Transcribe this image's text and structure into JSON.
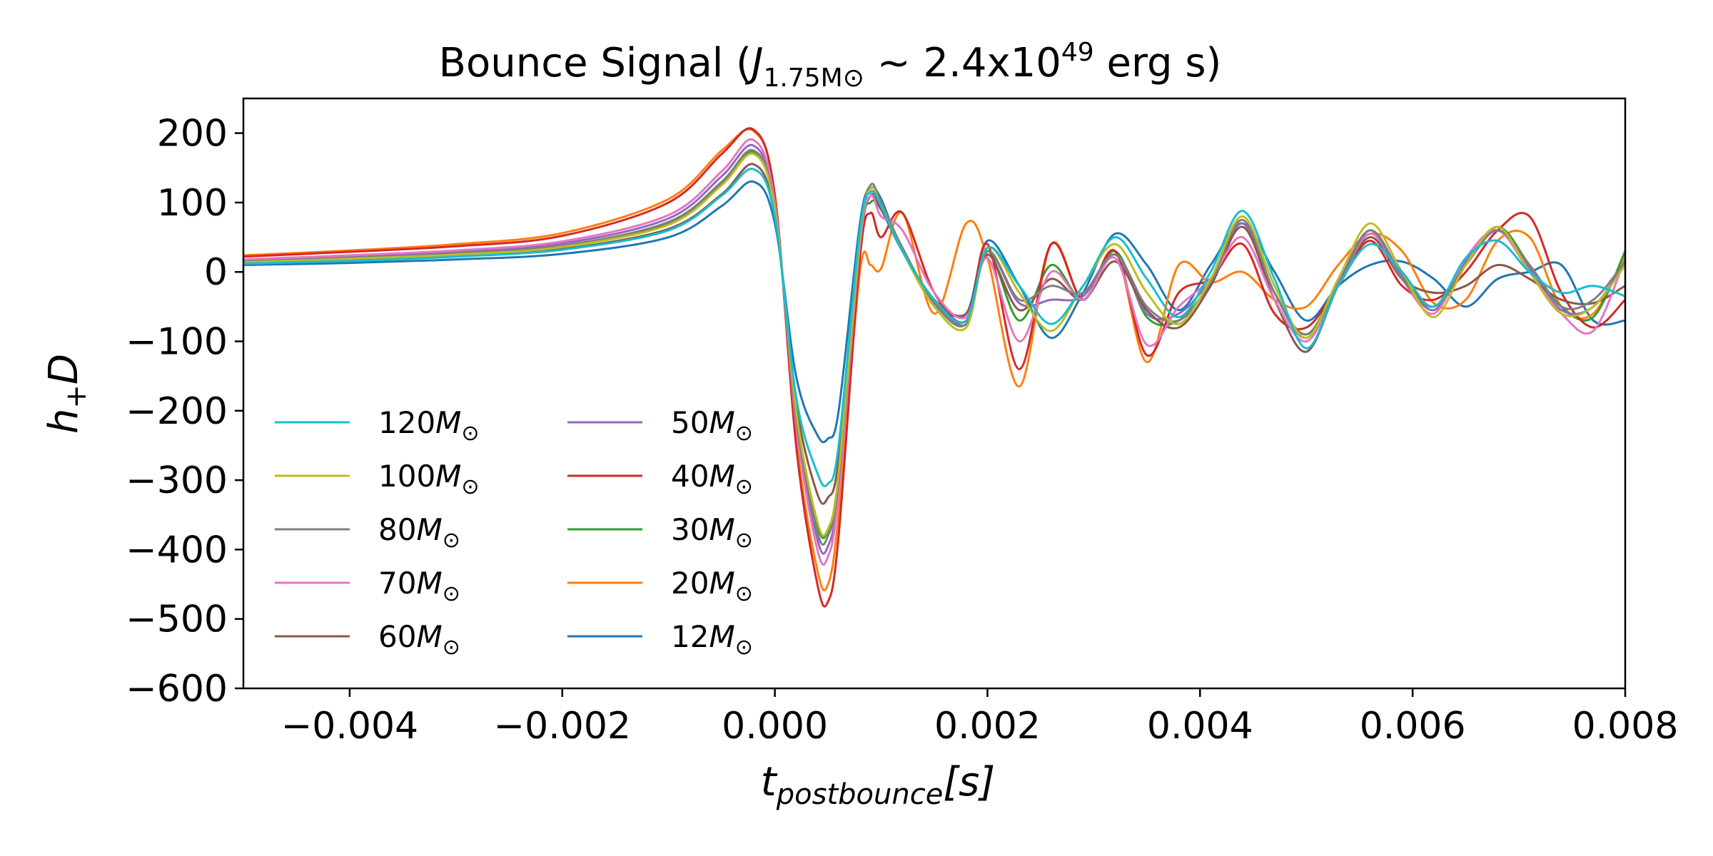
{
  "chart_data": {
    "type": "line",
    "title_parts": {
      "prefix": "Bounce Signal (",
      "j": "J",
      "j_sub": "1.75M",
      "j_sub_sym": "⊙",
      "mid": " ~ 2.4x10",
      "exp": "49",
      "suffix": " erg s)"
    },
    "xlabel_parts": {
      "main": "t",
      "sub": "postbounce",
      "tail": "[s]"
    },
    "ylabel_parts": {
      "main": "h",
      "sub": "+",
      "tail": "D"
    },
    "xlim": [
      -0.005,
      0.008
    ],
    "ylim": [
      -600,
      250
    ],
    "xticks": [
      -0.004,
      -0.002,
      0.0,
      0.002,
      0.004,
      0.006,
      0.008
    ],
    "xtick_labels": [
      "−0.004",
      "−0.002",
      "0.000",
      "0.002",
      "0.004",
      "0.006",
      "0.008"
    ],
    "yticks": [
      200,
      100,
      0,
      -100,
      -200,
      -300,
      -400,
      -500,
      -600
    ],
    "ytick_labels": [
      "200",
      "100",
      "0",
      "−100",
      "−200",
      "−300",
      "−400",
      "−500",
      "−600"
    ],
    "grid": false,
    "legend_position": "lower-left",
    "series": [
      {
        "name": "120M",
        "color": "#17becf",
        "x": [
          -0.005,
          -0.004,
          -0.003,
          -0.002,
          -0.001,
          -0.0005,
          -0.0002,
          0,
          0.0002,
          0.0004,
          0.0005,
          0.0006,
          0.0008,
          0.0009,
          0.001,
          0.0012,
          0.0015,
          0.0018,
          0.002,
          0.0023,
          0.0026,
          0.0029,
          0.0032,
          0.0035,
          0.0038,
          0.0041,
          0.0044,
          0.0047,
          0.005,
          0.0053,
          0.0056,
          0.0059,
          0.0062,
          0.0065,
          0.0068,
          0.0071,
          0.0074,
          0.0077,
          0.008
        ],
        "y": [
          12,
          16,
          22,
          32,
          60,
          110,
          148,
          80,
          -180,
          -290,
          -305,
          -250,
          60,
          115,
          95,
          30,
          -40,
          -70,
          35,
          -20,
          -75,
          -20,
          50,
          -10,
          -65,
          0,
          88,
          -10,
          -110,
          -20,
          40,
          0,
          -50,
          20,
          45,
          0,
          -30,
          -20,
          -35
        ]
      },
      {
        "name": "100M",
        "color": "#bcbd22",
        "x": [
          -0.005,
          -0.004,
          -0.003,
          -0.002,
          -0.001,
          -0.0005,
          -0.0002,
          0,
          0.0002,
          0.0004,
          0.0005,
          0.0006,
          0.0008,
          0.0009,
          0.001,
          0.0012,
          0.0015,
          0.0018,
          0.002,
          0.0023,
          0.0026,
          0.0029,
          0.0032,
          0.0035,
          0.0038,
          0.0041,
          0.0044,
          0.0047,
          0.005,
          0.0053,
          0.0056,
          0.0059,
          0.0062,
          0.0065,
          0.0068,
          0.0071,
          0.0074,
          0.0077,
          0.008
        ],
        "y": [
          14,
          19,
          25,
          36,
          68,
          125,
          170,
          90,
          -200,
          -360,
          -370,
          -290,
          50,
          120,
          95,
          30,
          -50,
          -80,
          35,
          -30,
          -85,
          -20,
          40,
          -30,
          -75,
          -10,
          80,
          -20,
          -95,
          -10,
          70,
          0,
          -65,
          10,
          65,
          0,
          -60,
          -50,
          10
        ]
      },
      {
        "name": "80M",
        "color": "#7f7f7f",
        "x": [
          -0.005,
          -0.004,
          -0.003,
          -0.002,
          -0.001,
          -0.0005,
          -0.0002,
          0,
          0.0002,
          0.0004,
          0.0005,
          0.0006,
          0.0008,
          0.0009,
          0.001,
          0.0012,
          0.0015,
          0.0018,
          0.002,
          0.0023,
          0.0026,
          0.0029,
          0.0032,
          0.0035,
          0.0038,
          0.0041,
          0.0044,
          0.0047,
          0.005,
          0.0053,
          0.0056,
          0.0059,
          0.0062,
          0.0065,
          0.0068,
          0.0071,
          0.0074,
          0.0077,
          0.008
        ],
        "y": [
          15,
          20,
          27,
          38,
          72,
          130,
          175,
          92,
          -210,
          -375,
          -380,
          -300,
          50,
          125,
          100,
          35,
          -45,
          -75,
          30,
          -40,
          -20,
          -30,
          25,
          -50,
          -70,
          -15,
          75,
          -30,
          -90,
          -20,
          60,
          -10,
          -50,
          10,
          60,
          10,
          -50,
          -40,
          15
        ]
      },
      {
        "name": "70M",
        "color": "#e377c2",
        "x": [
          -0.005,
          -0.004,
          -0.003,
          -0.002,
          -0.001,
          -0.0005,
          -0.0002,
          0,
          0.0002,
          0.0004,
          0.0005,
          0.0006,
          0.0008,
          0.0009,
          0.001,
          0.0012,
          0.0015,
          0.0018,
          0.002,
          0.0023,
          0.0026,
          0.0029,
          0.0032,
          0.0035,
          0.0038,
          0.0041,
          0.0044,
          0.0047,
          0.005,
          0.0053,
          0.0056,
          0.0059,
          0.0062,
          0.0065,
          0.0068,
          0.0071,
          0.0074,
          0.0077,
          0.008
        ],
        "y": [
          18,
          24,
          31,
          44,
          82,
          145,
          190,
          100,
          -220,
          -400,
          -410,
          -320,
          40,
          110,
          80,
          60,
          -30,
          -65,
          20,
          -100,
          0,
          -40,
          20,
          -105,
          -50,
          -10,
          50,
          -40,
          -100,
          -20,
          55,
          -10,
          -60,
          20,
          60,
          0,
          -60,
          -85,
          20
        ]
      },
      {
        "name": "60M",
        "color": "#8c564b",
        "x": [
          -0.005,
          -0.004,
          -0.003,
          -0.002,
          -0.001,
          -0.0005,
          -0.0002,
          0,
          0.0002,
          0.0004,
          0.0005,
          0.0006,
          0.0008,
          0.0009,
          0.001,
          0.0012,
          0.0015,
          0.0018,
          0.002,
          0.0023,
          0.0026,
          0.0029,
          0.0032,
          0.0035,
          0.0038,
          0.0041,
          0.0044,
          0.0047,
          0.005,
          0.0053,
          0.0056,
          0.0059,
          0.0062,
          0.0065,
          0.0068,
          0.0071,
          0.0074,
          0.0077,
          0.008
        ],
        "y": [
          13,
          17,
          23,
          33,
          62,
          112,
          155,
          82,
          -190,
          -320,
          -325,
          -270,
          40,
          110,
          90,
          30,
          -40,
          -60,
          25,
          -55,
          -10,
          -40,
          15,
          -55,
          -80,
          -20,
          65,
          -40,
          -115,
          -20,
          50,
          -10,
          -30,
          -20,
          10,
          -10,
          -40,
          -45,
          -20
        ]
      },
      {
        "name": "50M",
        "color": "#9467bd",
        "x": [
          -0.005,
          -0.004,
          -0.003,
          -0.002,
          -0.001,
          -0.0005,
          -0.0002,
          0,
          0.0002,
          0.0004,
          0.0005,
          0.0006,
          0.0008,
          0.0009,
          0.001,
          0.0012,
          0.0015,
          0.0018,
          0.002,
          0.0023,
          0.0026,
          0.0029,
          0.0032,
          0.0035,
          0.0038,
          0.0041,
          0.0044,
          0.0047,
          0.005,
          0.0053,
          0.0056,
          0.0059,
          0.0062,
          0.0065,
          0.0068,
          0.0071,
          0.0074,
          0.0077,
          0.008
        ],
        "y": [
          16,
          22,
          29,
          41,
          77,
          138,
          182,
          96,
          -215,
          -385,
          -395,
          -310,
          45,
          120,
          95,
          35,
          -45,
          -70,
          30,
          -45,
          -40,
          -35,
          25,
          -60,
          -60,
          -10,
          70,
          -30,
          -95,
          -15,
          60,
          -5,
          -55,
          15,
          60,
          5,
          -55,
          -50,
          15
        ]
      },
      {
        "name": "40M",
        "color": "#d62728",
        "x": [
          -0.005,
          -0.004,
          -0.003,
          -0.002,
          -0.001,
          -0.0005,
          -0.0002,
          0,
          0.0002,
          0.0004,
          0.0005,
          0.0006,
          0.0008,
          0.0009,
          0.001,
          0.0012,
          0.0015,
          0.0018,
          0.002,
          0.0023,
          0.0026,
          0.0029,
          0.0032,
          0.0035,
          0.0038,
          0.0041,
          0.0044,
          0.0047,
          0.005,
          0.0053,
          0.0056,
          0.0059,
          0.0062,
          0.0065,
          0.0068,
          0.0071,
          0.0074,
          0.0077,
          0.008
        ],
        "y": [
          22,
          29,
          37,
          52,
          100,
          170,
          205,
          110,
          -250,
          -450,
          -475,
          -380,
          20,
          85,
          50,
          85,
          -30,
          -70,
          40,
          -140,
          40,
          -40,
          30,
          -120,
          -30,
          -10,
          40,
          -60,
          -80,
          -20,
          45,
          -20,
          -40,
          0,
          60,
          80,
          -30,
          -80,
          -40
        ]
      },
      {
        "name": "30M",
        "color": "#2ca02c",
        "x": [
          -0.005,
          -0.004,
          -0.003,
          -0.002,
          -0.001,
          -0.0005,
          -0.0002,
          0,
          0.0002,
          0.0004,
          0.0005,
          0.0006,
          0.0008,
          0.0009,
          0.001,
          0.0012,
          0.0015,
          0.0018,
          0.002,
          0.0023,
          0.0026,
          0.0029,
          0.0032,
          0.0035,
          0.0038,
          0.0041,
          0.0044,
          0.0047,
          0.005,
          0.0053,
          0.0056,
          0.0059,
          0.0062,
          0.0065,
          0.0068,
          0.0071,
          0.0074,
          0.0077,
          0.008
        ],
        "y": [
          15,
          20,
          26,
          37,
          70,
          128,
          172,
          92,
          -205,
          -365,
          -372,
          -292,
          50,
          100,
          90,
          30,
          -40,
          -75,
          30,
          -70,
          10,
          -40,
          30,
          -65,
          -70,
          -15,
          70,
          -30,
          -90,
          -15,
          60,
          -5,
          -50,
          10,
          65,
          10,
          -50,
          -65,
          30
        ]
      },
      {
        "name": "20M",
        "color": "#ff7f0e",
        "x": [
          -0.005,
          -0.004,
          -0.003,
          -0.002,
          -0.001,
          -0.0005,
          -0.0002,
          0,
          0.0002,
          0.0004,
          0.0005,
          0.0006,
          0.0008,
          0.0009,
          0.001,
          0.0012,
          0.0015,
          0.0018,
          0.002,
          0.0023,
          0.0026,
          0.0029,
          0.0032,
          0.0035,
          0.0038,
          0.0041,
          0.0044,
          0.0047,
          0.005,
          0.0053,
          0.0056,
          0.0059,
          0.0062,
          0.0065,
          0.0068,
          0.0071,
          0.0074,
          0.0077,
          0.008
        ],
        "y": [
          24,
          31,
          40,
          56,
          105,
          175,
          203,
          112,
          -240,
          -430,
          -450,
          -350,
          0,
          10,
          5,
          85,
          -60,
          70,
          20,
          -165,
          40,
          -40,
          30,
          -130,
          10,
          -15,
          0,
          -40,
          -50,
          10,
          55,
          30,
          -45,
          -40,
          45,
          50,
          -50,
          -60,
          25
        ]
      },
      {
        "name": "12M",
        "color": "#1f77b4",
        "x": [
          -0.005,
          -0.004,
          -0.003,
          -0.002,
          -0.001,
          -0.0005,
          -0.0002,
          0,
          0.0002,
          0.0004,
          0.0005,
          0.0006,
          0.0008,
          0.0009,
          0.001,
          0.0012,
          0.0015,
          0.0018,
          0.002,
          0.0023,
          0.0026,
          0.0029,
          0.0032,
          0.0035,
          0.0038,
          0.0041,
          0.0044,
          0.0047,
          0.005,
          0.0053,
          0.0056,
          0.0059,
          0.0062,
          0.0065,
          0.0068,
          0.0071,
          0.0074,
          0.0077,
          0.008
        ],
        "y": [
          10,
          13,
          18,
          26,
          50,
          95,
          130,
          70,
          -150,
          -235,
          -240,
          -200,
          70,
          120,
          105,
          30,
          -40,
          -60,
          45,
          -20,
          -95,
          -30,
          55,
          10,
          -55,
          10,
          70,
          0,
          -70,
          -20,
          10,
          15,
          -10,
          -50,
          -10,
          0,
          10,
          -70,
          -70
        ]
      }
    ]
  }
}
